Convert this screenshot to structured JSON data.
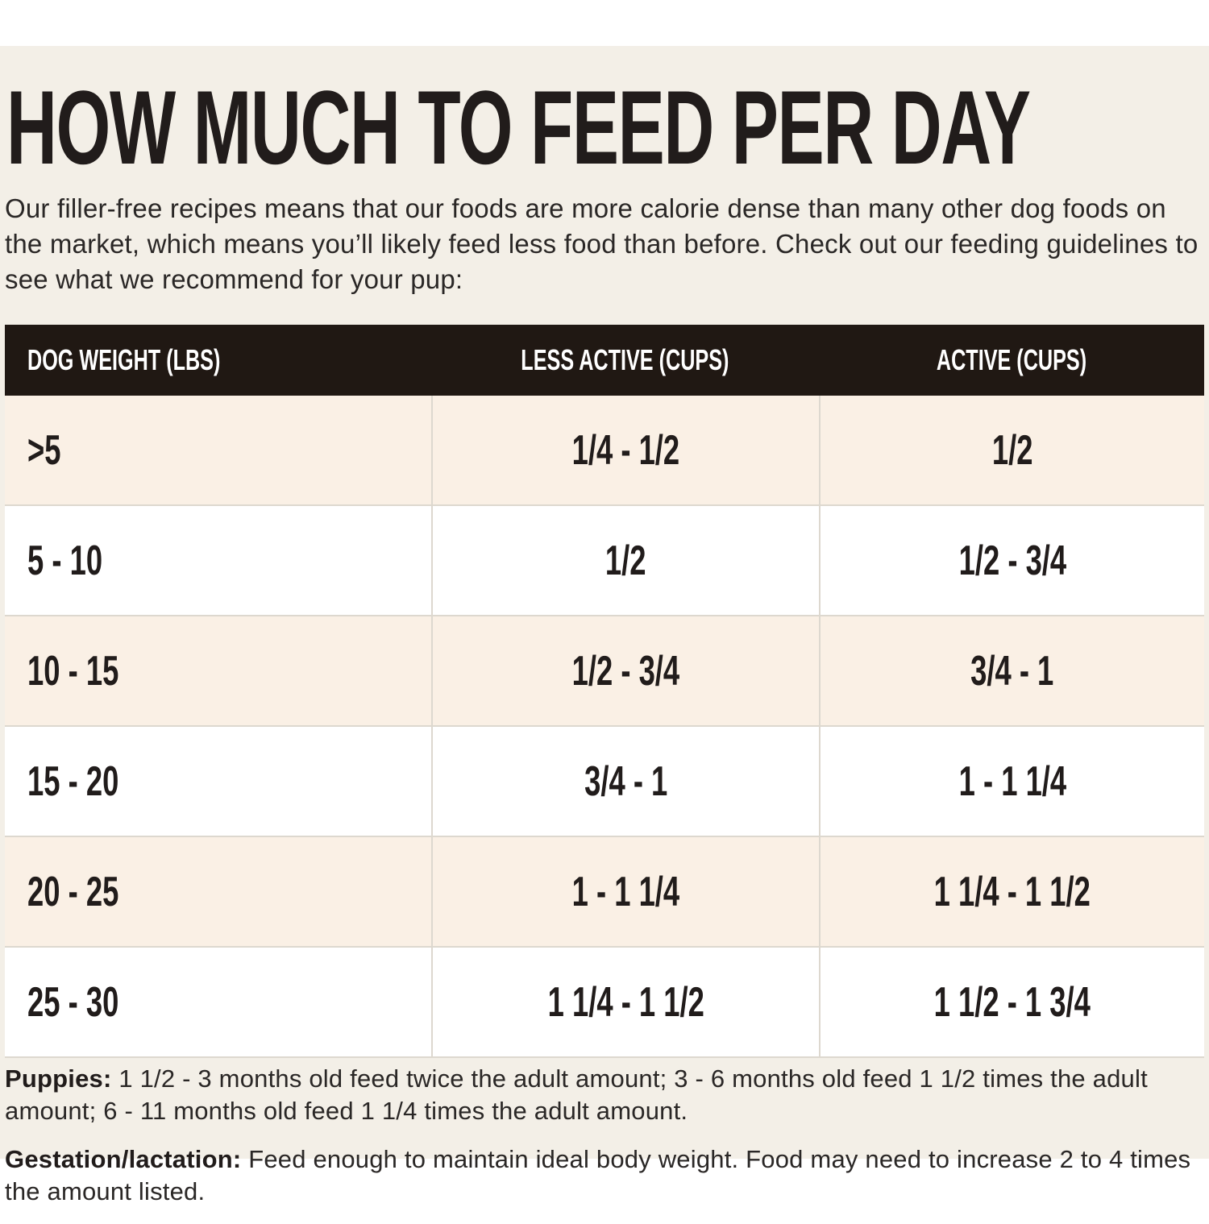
{
  "page": {
    "title": "HOW MUCH TO FEED PER DAY",
    "intro": "Our filler-free recipes means that our foods are more calorie dense than many other dog foods on the market, which means you’ll likely feed less food than before. Check out our feeding guidelines to see what we recommend for your pup:"
  },
  "table": {
    "columns": [
      "DOG WEIGHT (LBS)",
      "LESS ACTIVE (CUPS)",
      "ACTIVE (CUPS)"
    ],
    "rows": [
      [
        ">5",
        "1/4 - 1/2",
        "1/2"
      ],
      [
        "5 - 10",
        "1/2",
        "1/2 - 3/4"
      ],
      [
        "10 - 15",
        "1/2 - 3/4",
        "3/4 - 1"
      ],
      [
        "15 - 20",
        "3/4 - 1",
        "1 - 1 1/4"
      ],
      [
        "20 - 25",
        "1 - 1 1/4",
        "1 1/4 - 1 1/2"
      ],
      [
        "25 - 30",
        "1 1/4 - 1 1/2",
        "1 1/2 - 1 3/4"
      ]
    ]
  },
  "notes": [
    {
      "label": "Puppies:",
      "text": " 1 1/2 - 3 months old feed twice the adult amount; 3 - 6 months old feed 1 1/2 times the adult amount; 6 - 11 months old feed 1 1/4 times the adult amount."
    },
    {
      "label": "Gestation/lactation:",
      "text": " Feed enough to maintain ideal body weight. Food may need to increase 2 to 4 times the amount listed."
    }
  ],
  "colors": {
    "page_background": "#f3efe7",
    "table_header_background": "#201813",
    "row_alternate_background": "#faf0e5",
    "row_background": "#ffffff",
    "text": "#211c1b",
    "divider": "#ddd8cf"
  }
}
